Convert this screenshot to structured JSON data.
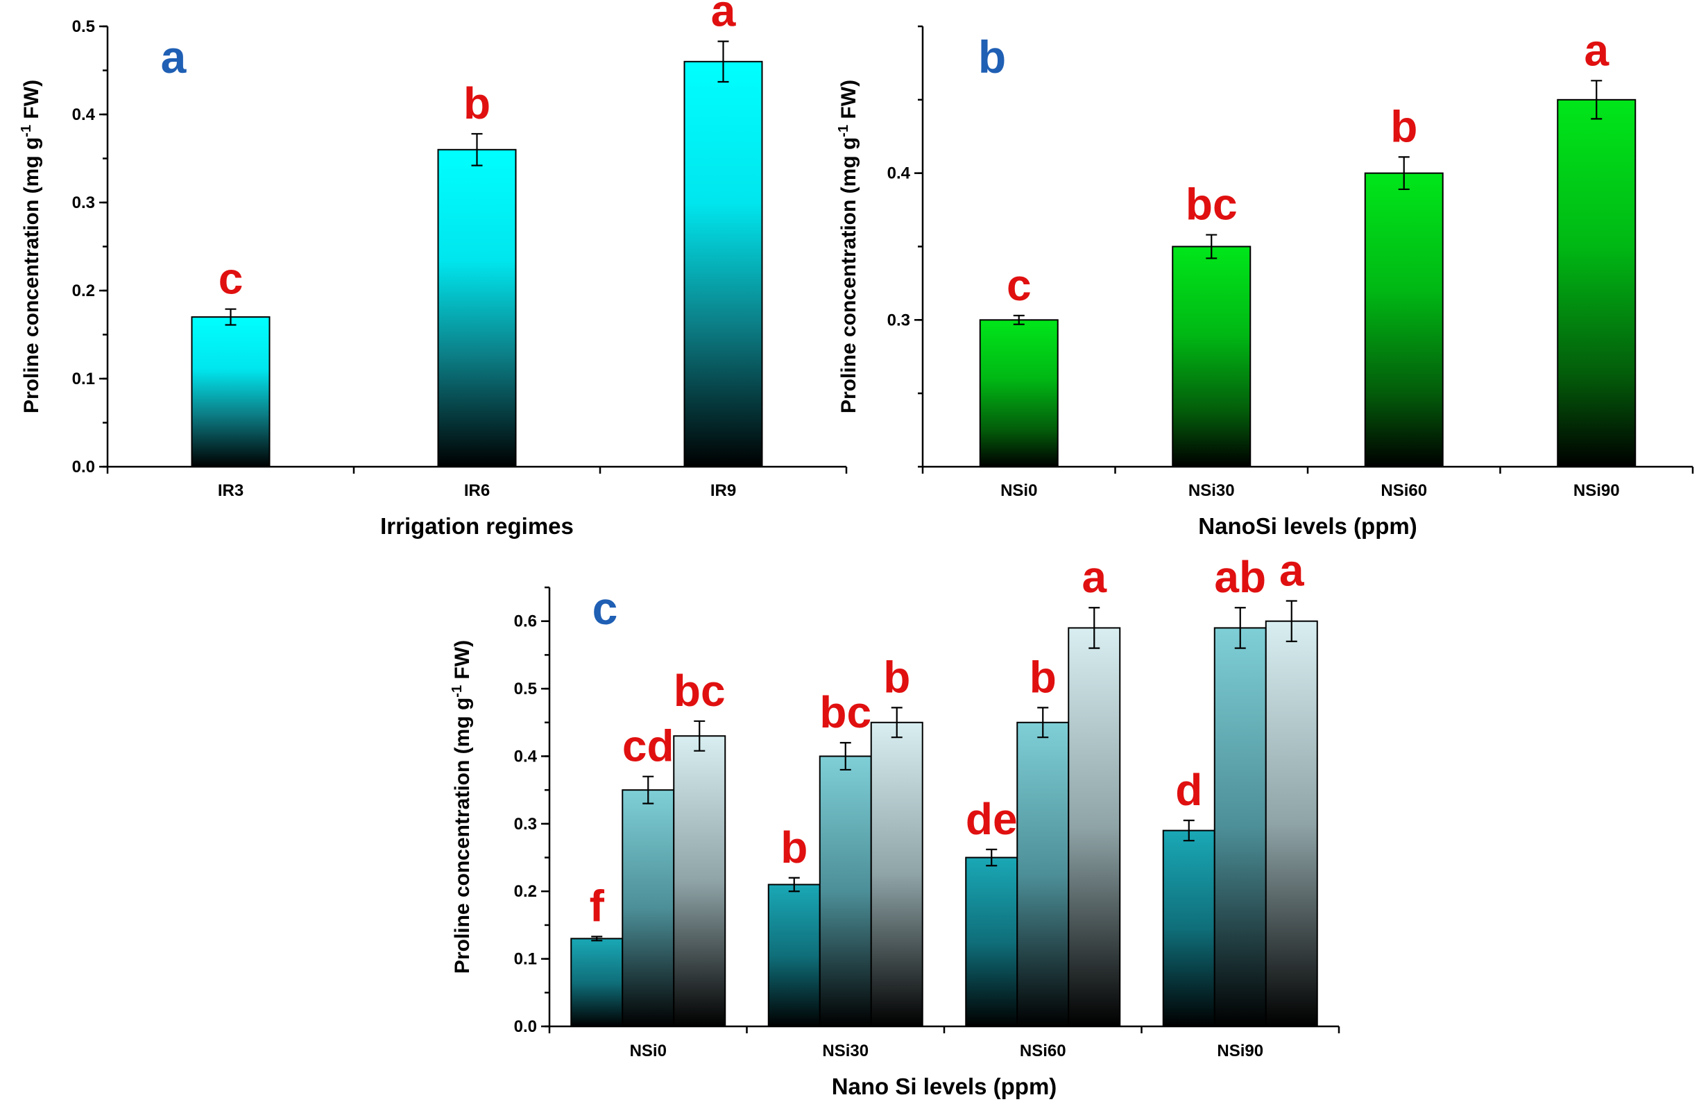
{
  "colors": {
    "panel_letter": "#1f5fb4",
    "significance_letter": "#e01010",
    "cyan_top": "#00ffff",
    "green_top": "#00e61a",
    "teal_dark_top": "#1aa8b6",
    "teal_mid_top": "#7fcfd7",
    "teal_light_top": "#d8eef1"
  },
  "chart_data": [
    {
      "type": "bar",
      "panel_label": "a",
      "categories": [
        "IR3",
        "IR6",
        "IR9"
      ],
      "values": [
        0.17,
        0.36,
        0.46
      ],
      "errors": [
        0.009,
        0.018,
        0.023
      ],
      "significance": [
        "c",
        "b",
        "a"
      ],
      "xlabel": "Irrigation regimes",
      "ylabel_prefix": "Proline concentration (mg g",
      "ylabel_sup": "-1",
      "ylabel_suffix": " FW)",
      "ylim": [
        0,
        0.5
      ],
      "yticks": [
        "0.0",
        "0.1",
        "0.2",
        "0.3",
        "0.4",
        "0.5"
      ],
      "fill": "cyan-to-black vertical gradient",
      "grid": false
    },
    {
      "type": "bar",
      "panel_label": "b",
      "categories": [
        "NSi0",
        "NSi30",
        "NSi60",
        "NSi90"
      ],
      "values": [
        0.3,
        0.35,
        0.4,
        0.45
      ],
      "errors": [
        0.003,
        0.008,
        0.011,
        0.013
      ],
      "significance": [
        "c",
        "bc",
        "b",
        "a"
      ],
      "xlabel": "NanoSi levels (ppm)",
      "ylabel_prefix": "Proline concentration (mg g",
      "ylabel_sup": "-1",
      "ylabel_suffix": " FW)",
      "ylim": [
        0.2,
        0.5
      ],
      "yticks": [
        "0.3",
        "0.4"
      ],
      "fill": "green-to-black vertical gradient",
      "grid": false
    },
    {
      "type": "bar",
      "panel_label": "c",
      "categories": [
        "NSi0",
        "NSi30",
        "NSi60",
        "NSi90"
      ],
      "series": [
        {
          "values": [
            0.13,
            0.21,
            0.25,
            0.29
          ],
          "errors": [
            0.003,
            0.01,
            0.012,
            0.015
          ],
          "significance": [
            "f",
            "b",
            "de",
            "d"
          ]
        },
        {
          "values": [
            0.35,
            0.4,
            0.45,
            0.59
          ],
          "errors": [
            0.02,
            0.02,
            0.022,
            0.03
          ],
          "significance": [
            "cd",
            "bc",
            "b",
            "ab"
          ]
        },
        {
          "values": [
            0.43,
            0.45,
            0.59,
            0.6
          ],
          "errors": [
            0.022,
            0.022,
            0.03,
            0.03
          ],
          "significance": [
            "bc",
            "b",
            "a",
            "a"
          ]
        }
      ],
      "xlabel": "Nano Si levels (ppm)",
      "ylabel_prefix": "Proline concentration (mg g",
      "ylabel_sup": "-1",
      "ylabel_suffix": " FW)",
      "ylim": [
        0,
        0.65
      ],
      "yticks": [
        "0.0",
        "0.1",
        "0.2",
        "0.3",
        "0.4",
        "0.5",
        "0.6"
      ],
      "fill": "teal-to-black vertical gradients (dark, medium, light)",
      "grid": false
    }
  ]
}
